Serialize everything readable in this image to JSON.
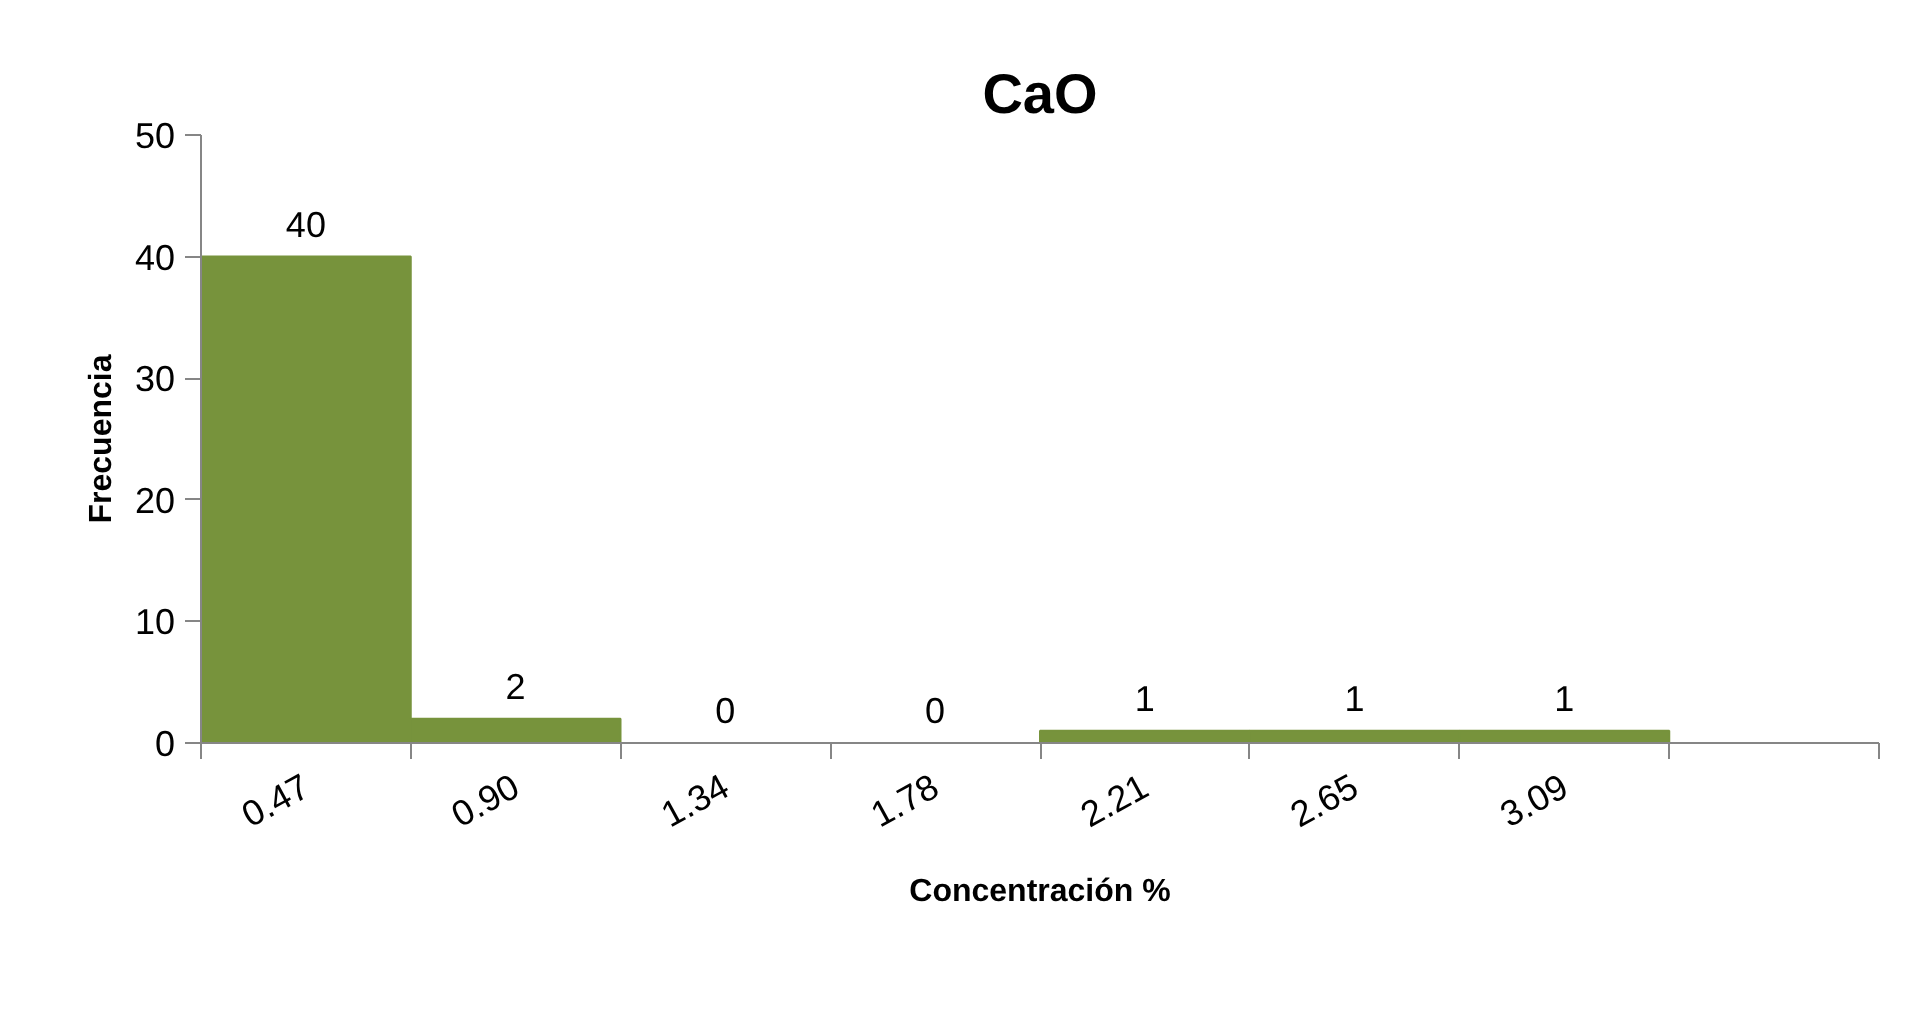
{
  "chart_data": {
    "type": "bar",
    "title": "CaO",
    "xlabel": "Concentración %",
    "ylabel": "Frecuencia",
    "categories": [
      "0.47",
      "0.90",
      "1.34",
      "1.78",
      "2.21",
      "2.65",
      "3.09",
      null
    ],
    "values": [
      40,
      2,
      0,
      0,
      1,
      1,
      1,
      null
    ],
    "value_labels": [
      "40",
      "2",
      "0",
      "0",
      "1",
      "1",
      "1",
      null
    ],
    "color": "#77933c",
    "ylim": [
      0,
      50
    ],
    "yticks": [
      0,
      10,
      20,
      30,
      40,
      50
    ],
    "grid": false
  }
}
